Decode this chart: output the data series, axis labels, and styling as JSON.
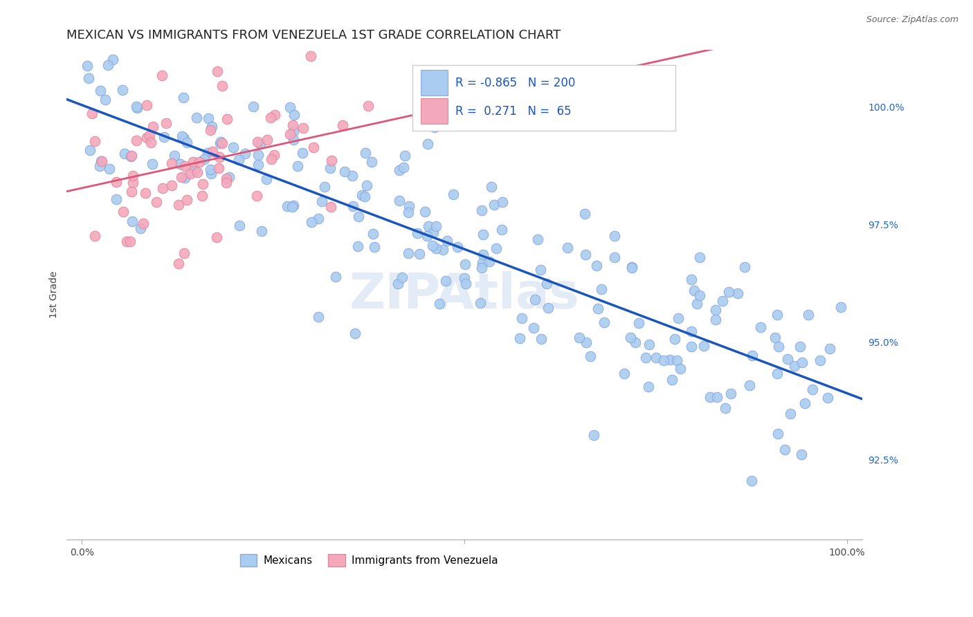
{
  "title": "MEXICAN VS IMMIGRANTS FROM VENEZUELA 1ST GRADE CORRELATION CHART",
  "source": "Source: ZipAtlas.com",
  "ylabel": "1st Grade",
  "watermark": "ZIPAtlas",
  "blue_R": -0.865,
  "blue_N": 200,
  "pink_R": 0.271,
  "pink_N": 65,
  "blue_color": "#aaccf0",
  "pink_color": "#f4a8bc",
  "blue_edge_color": "#88aadd",
  "pink_edge_color": "#e088a0",
  "blue_line_color": "#1a55bb",
  "pink_line_color": "#dd5577",
  "legend_blue_label": "Mexicans",
  "legend_pink_label": "Immigrants from Venezuela",
  "ytick_labels": [
    "92.5%",
    "95.0%",
    "97.5%",
    "100.0%"
  ],
  "ytick_values": [
    0.925,
    0.95,
    0.975,
    1.0
  ],
  "ymin": 0.908,
  "ymax": 1.012,
  "xmin": -0.02,
  "xmax": 1.02,
  "title_fontsize": 13,
  "axis_label_fontsize": 10,
  "tick_fontsize": 10,
  "background_color": "#ffffff",
  "grid_color": "#cccccc",
  "ytick_color": "#2266cc"
}
